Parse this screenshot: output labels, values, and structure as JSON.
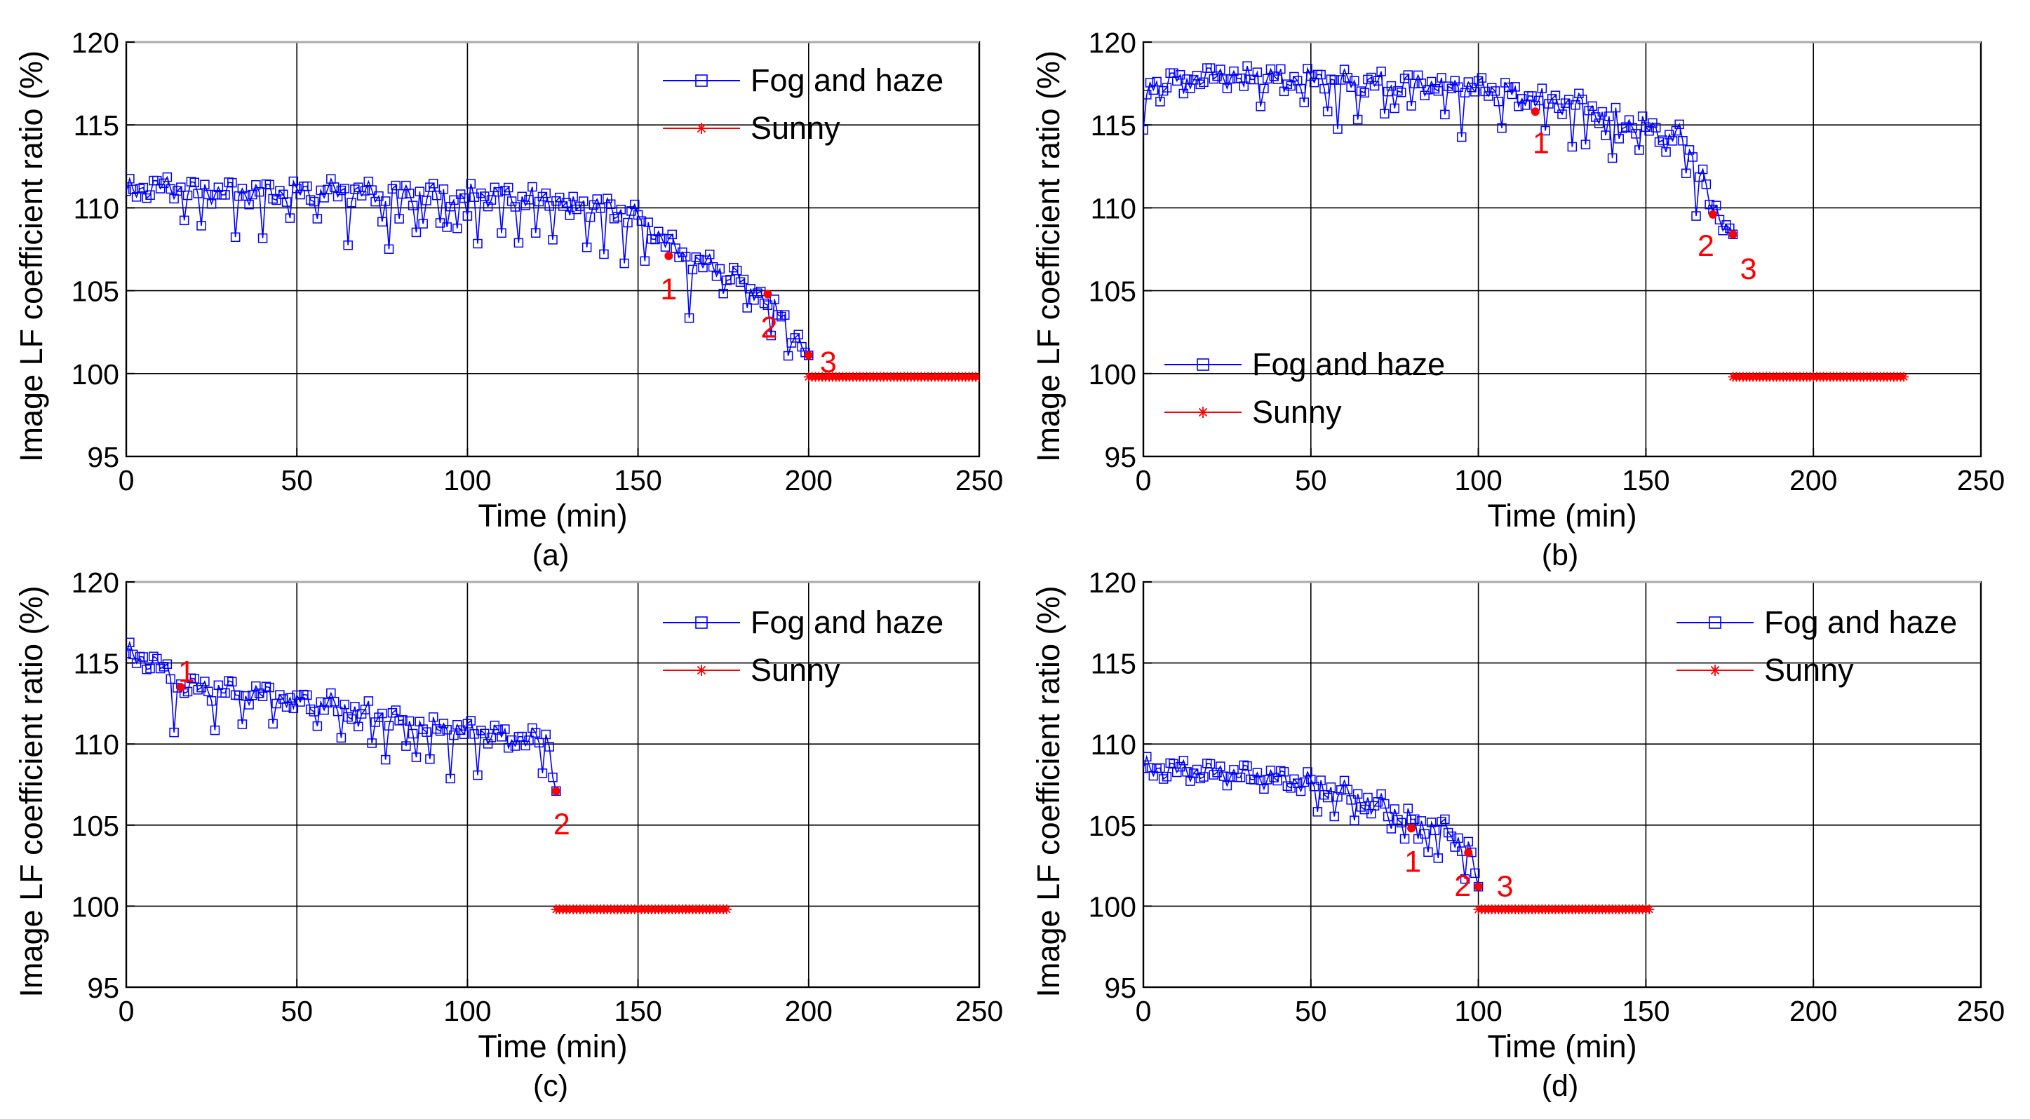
{
  "chart_data": [
    {
      "type": "line",
      "panel_label": "(a)",
      "xlabel": "Time (min)",
      "ylabel": "Image LF coefficient ratio (%)",
      "xlim": [
        0,
        250
      ],
      "ylim": [
        95,
        120
      ],
      "xticks": [
        "0",
        "50",
        "100",
        "150",
        "200",
        "250"
      ],
      "yticks": [
        "95",
        "100",
        "105",
        "110",
        "115",
        "120"
      ],
      "grid": true,
      "legend_position": "top-right",
      "fog_trend": [
        [
          0,
          111
        ],
        [
          10,
          111.3
        ],
        [
          20,
          111
        ],
        [
          40,
          110.9
        ],
        [
          60,
          111
        ],
        [
          80,
          110.8
        ],
        [
          100,
          110.8
        ],
        [
          120,
          110.6
        ],
        [
          140,
          110
        ],
        [
          150,
          109.5
        ],
        [
          158,
          108
        ],
        [
          165,
          106.8
        ],
        [
          175,
          106.3
        ],
        [
          185,
          105
        ],
        [
          192,
          103.5
        ],
        [
          198,
          101.7
        ],
        [
          200,
          101.1
        ]
      ],
      "dip_times": [
        17,
        22,
        32,
        40,
        48,
        56,
        65,
        75,
        77,
        80,
        85,
        87,
        92,
        94,
        97,
        100,
        103,
        110,
        115,
        120,
        125,
        130,
        135,
        140,
        146,
        152,
        165,
        175,
        182,
        189,
        194
      ],
      "dip_depth": 2.8,
      "series": [
        {
          "name": "Fog and haze",
          "color": "#0000ff",
          "x_range": [
            0,
            200
          ],
          "step": 1
        },
        {
          "name": "Sunny",
          "color": "#ff0000",
          "x_range": [
            200,
            250
          ],
          "step": 1,
          "value": 99.8
        }
      ],
      "annotations": [
        {
          "label": "1",
          "x": 159,
          "y": 107.1
        },
        {
          "label": "2",
          "x": 188,
          "y": 104.8
        },
        {
          "label": "3",
          "x": 200,
          "y": 101.1
        }
      ]
    },
    {
      "type": "line",
      "panel_label": "(b)",
      "xlabel": "Time (min)",
      "ylabel": "Image LF coefficient ratio (%)",
      "xlim": [
        0,
        250
      ],
      "ylim": [
        95,
        120
      ],
      "xticks": [
        "0",
        "50",
        "100",
        "150",
        "200",
        "250"
      ],
      "yticks": [
        "95",
        "100",
        "105",
        "110",
        "115",
        "120"
      ],
      "grid": true,
      "legend_position": "center-left",
      "fog_trend": [
        [
          0,
          114.7
        ],
        [
          2,
          117.5
        ],
        [
          10,
          117.8
        ],
        [
          30,
          118
        ],
        [
          60,
          117.6
        ],
        [
          90,
          117.4
        ],
        [
          110,
          117
        ],
        [
          120,
          116.5
        ],
        [
          130,
          116.2
        ],
        [
          140,
          115.5
        ],
        [
          150,
          114.8
        ],
        [
          160,
          114.3
        ],
        [
          167,
          112
        ],
        [
          170,
          109.6
        ],
        [
          174,
          109
        ],
        [
          176,
          108.4
        ]
      ],
      "dip_times": [
        5,
        12,
        30,
        35,
        42,
        48,
        55,
        58,
        64,
        72,
        75,
        80,
        90,
        95,
        107,
        112,
        120,
        128,
        132,
        138,
        140,
        142,
        148,
        156,
        162,
        165
      ],
      "dip_depth": 2.5,
      "series": [
        {
          "name": "Fog and haze",
          "color": "#0000ff",
          "x_range": [
            0,
            176
          ],
          "step": 1
        },
        {
          "name": "Sunny",
          "color": "#ff0000",
          "x_range": [
            176,
            227
          ],
          "step": 1,
          "value": 99.8
        }
      ],
      "annotations": [
        {
          "label": "1",
          "x": 117,
          "y": 115.8
        },
        {
          "label": "2",
          "x": 170,
          "y": 109.6
        },
        {
          "label": "3",
          "x": 176,
          "y": 108.4
        }
      ]
    },
    {
      "type": "line",
      "panel_label": "(c)",
      "xlabel": "Time (min)",
      "ylabel": "Image LF coefficient ratio (%)",
      "xlim": [
        0,
        250
      ],
      "ylim": [
        95,
        120
      ],
      "xticks": [
        "0",
        "50",
        "100",
        "150",
        "200",
        "250"
      ],
      "yticks": [
        "95",
        "100",
        "105",
        "110",
        "115",
        "120"
      ],
      "grid": true,
      "legend_position": "top-right",
      "fog_trend": [
        [
          0,
          115.6
        ],
        [
          5,
          115.3
        ],
        [
          10,
          114.8
        ],
        [
          15,
          113.6
        ],
        [
          30,
          113.3
        ],
        [
          50,
          112.8
        ],
        [
          70,
          112
        ],
        [
          90,
          111
        ],
        [
          110,
          110.6
        ],
        [
          120,
          110.3
        ],
        [
          124,
          110.2
        ],
        [
          126,
          107.1
        ]
      ],
      "dip_times": [
        14,
        26,
        34,
        43,
        49,
        56,
        63,
        68,
        72,
        76,
        82,
        85,
        89,
        95,
        103,
        112,
        122
      ],
      "dip_depth": 2.5,
      "series": [
        {
          "name": "Fog and haze",
          "color": "#0000ff",
          "x_range": [
            0,
            126
          ],
          "step": 1
        },
        {
          "name": "Sunny",
          "color": "#ff0000",
          "x_range": [
            126,
            176
          ],
          "step": 1,
          "value": 99.8
        }
      ],
      "annotations": [
        {
          "label": "1",
          "x": 16,
          "y": 113.5
        },
        {
          "label": "2",
          "x": 126,
          "y": 107.1
        }
      ]
    },
    {
      "type": "line",
      "panel_label": "(d)",
      "xlabel": "Time (min)",
      "ylabel": "Image LF coefficient ratio (%)",
      "xlim": [
        0,
        250
      ],
      "ylim": [
        95,
        120
      ],
      "xticks": [
        "0",
        "50",
        "100",
        "150",
        "200",
        "250"
      ],
      "yticks": [
        "95",
        "100",
        "105",
        "110",
        "115",
        "120"
      ],
      "grid": true,
      "legend_position": "top-right",
      "fog_trend": [
        [
          0,
          108.5
        ],
        [
          10,
          108.4
        ],
        [
          30,
          108.1
        ],
        [
          50,
          107.6
        ],
        [
          60,
          107
        ],
        [
          70,
          106.3
        ],
        [
          80,
          105.4
        ],
        [
          90,
          104.7
        ],
        [
          96,
          104
        ],
        [
          98,
          103.3
        ],
        [
          100,
          101.2
        ]
      ],
      "dip_times": [
        52,
        57,
        63,
        68,
        74,
        78,
        82,
        85,
        88,
        93,
        96
      ],
      "dip_depth": 2.0,
      "series": [
        {
          "name": "Fog and haze",
          "color": "#0000ff",
          "x_range": [
            0,
            100
          ],
          "step": 1
        },
        {
          "name": "Sunny",
          "color": "#ff0000",
          "x_range": [
            100,
            151
          ],
          "step": 1,
          "value": 99.8
        }
      ],
      "annotations": [
        {
          "label": "1",
          "x": 80,
          "y": 104.8
        },
        {
          "label": "2",
          "x": 97,
          "y": 103.3
        },
        {
          "label": "3",
          "x": 100,
          "y": 101.2
        }
      ]
    }
  ]
}
